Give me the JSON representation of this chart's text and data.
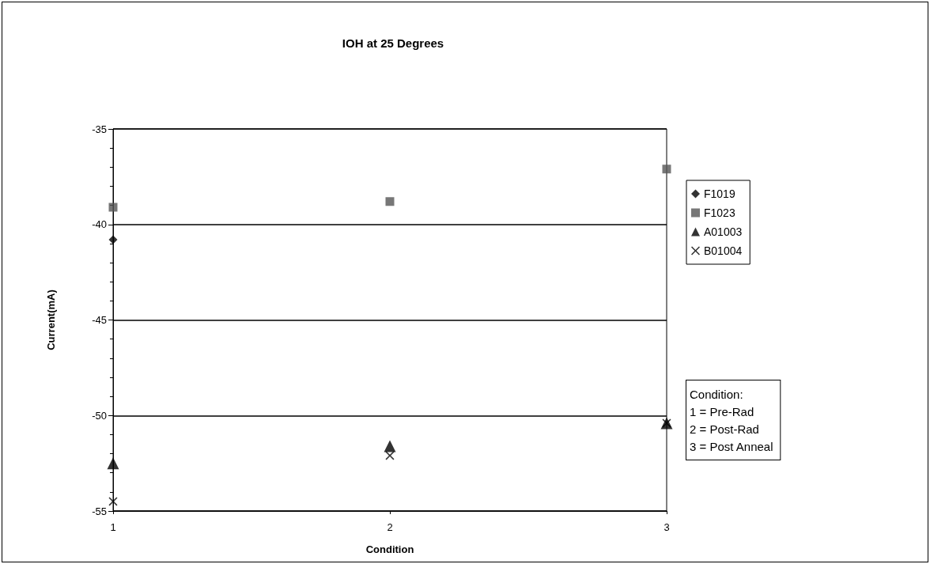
{
  "chart_data": {
    "type": "scatter",
    "title": "IOH at 25 Degrees",
    "xlabel": "Condition",
    "ylabel": "Current(mA)",
    "x": [
      1,
      2,
      3
    ],
    "xlim": [
      1,
      3
    ],
    "xticks": [
      1,
      2,
      3
    ],
    "ylim": [
      -55,
      -35
    ],
    "yticks": [
      -55,
      -50,
      -45,
      -40,
      -35
    ],
    "grid": "y",
    "legend": "right",
    "series": [
      {
        "name": "F1019",
        "color": "#000000",
        "marker": "diamond",
        "values": [
          -40.8,
          null,
          null
        ]
      },
      {
        "name": "F1023",
        "color": "#555555",
        "marker": "square",
        "values": [
          -39.1,
          -38.8,
          -37.1
        ]
      },
      {
        "name": "A01003",
        "color": "#000000",
        "marker": "triangle",
        "values": [
          -52.5,
          -51.6,
          -50.4
        ]
      },
      {
        "name": "B01004",
        "color": "#000000",
        "marker": "cross",
        "values": [
          -54.5,
          -52.1,
          -50.4
        ]
      }
    ],
    "annotations": [
      "Condition:\n1 = Pre-Rad\n2 = Post-Rad\n3 = Post Anneal"
    ]
  }
}
